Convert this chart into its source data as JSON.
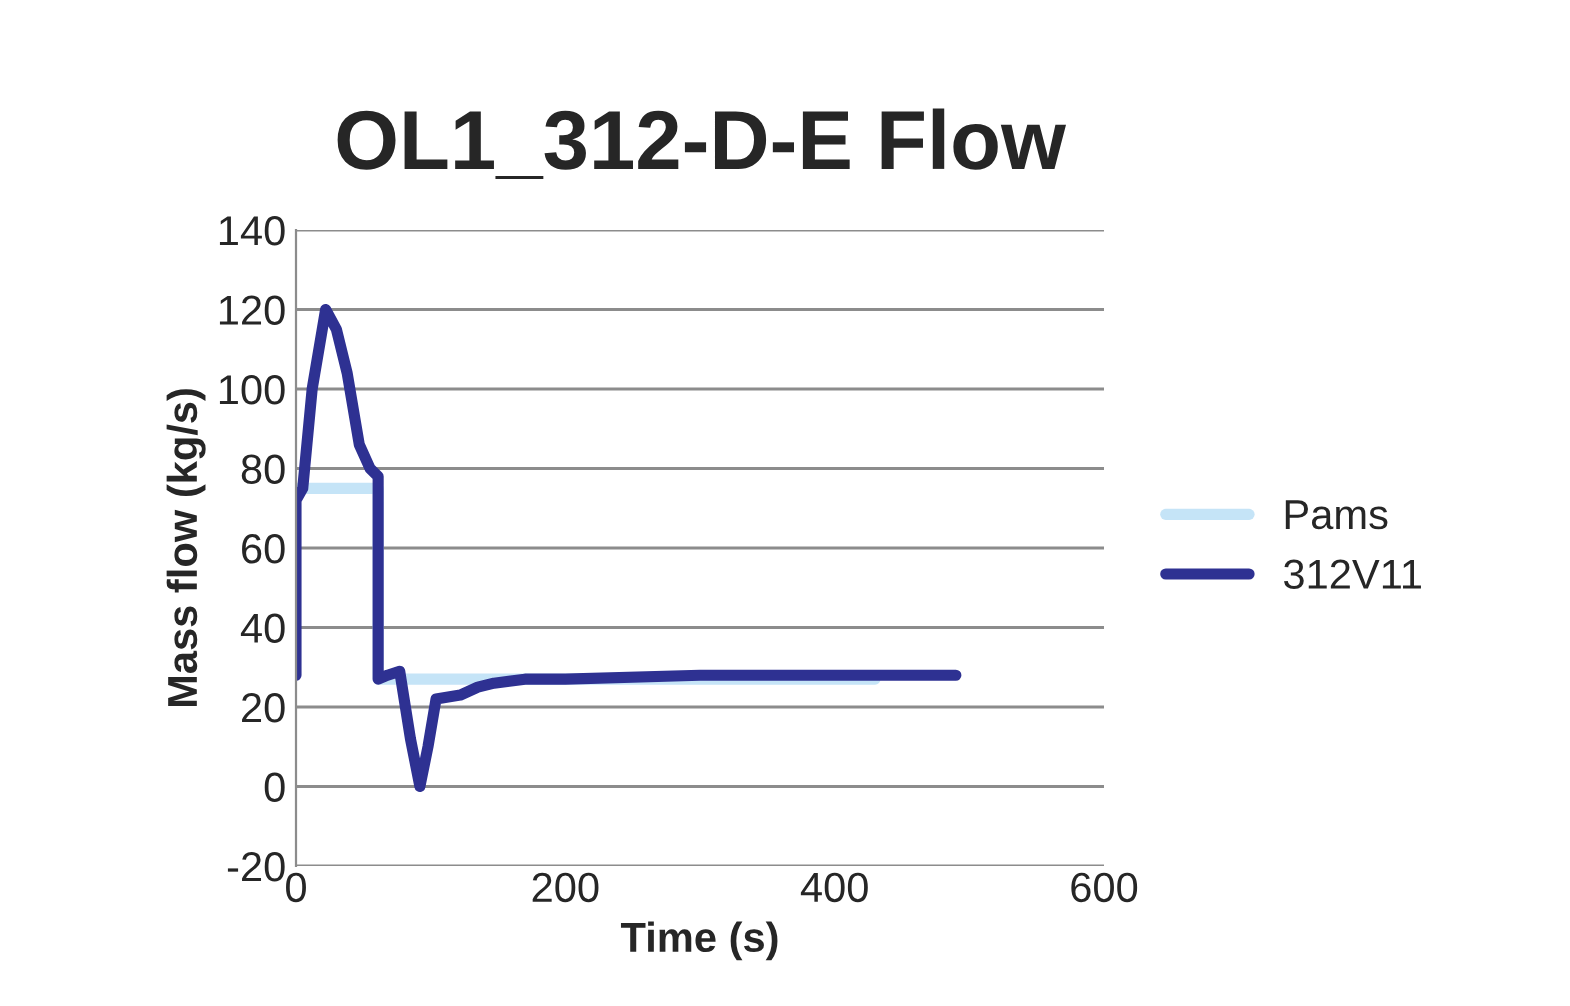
{
  "chart_data": {
    "type": "line",
    "title": "OL1_312-D-E Flow",
    "xlabel": "Time (s)",
    "ylabel": "Mass flow (kg/s)",
    "xlim": [
      0,
      600
    ],
    "xticks": [
      0,
      200,
      400,
      600
    ],
    "ylim": [
      -20,
      140
    ],
    "yticks": [
      -20,
      0,
      20,
      40,
      60,
      80,
      100,
      120,
      140
    ],
    "grid": "y",
    "legend": "right",
    "line_style": "solid",
    "marker": "none",
    "series": [
      {
        "name": "Pams",
        "color": "#c5e4f7",
        "x": [
          0,
          61,
          61,
          430
        ],
        "values": [
          75,
          75,
          27,
          27
        ]
      },
      {
        "name": "312V11",
        "color": "#2e3192",
        "x": [
          0,
          0,
          5,
          12,
          22,
          30,
          38,
          47,
          55,
          61,
          61,
          68,
          77,
          85,
          92,
          98,
          104,
          122,
          135,
          147,
          170,
          200,
          300,
          400,
          490
        ],
        "values": [
          28,
          72,
          75,
          100,
          120,
          115,
          104,
          86,
          80,
          78,
          27,
          28,
          29,
          12,
          0,
          10,
          22,
          23,
          25,
          26,
          27,
          27,
          28,
          28,
          28
        ]
      }
    ]
  }
}
